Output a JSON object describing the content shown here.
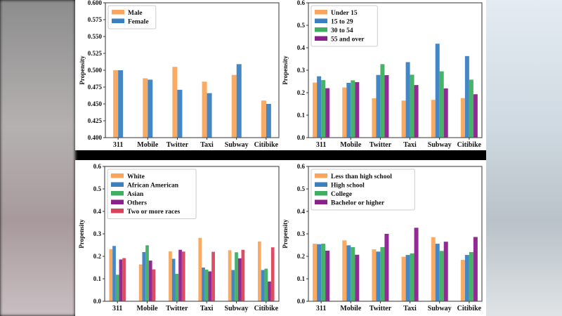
{
  "colors": {
    "orange": "#f9a55b",
    "blue": "#3b7fc1",
    "green": "#3fae62",
    "purple": "#8b1f8c",
    "red": "#d8435b"
  },
  "chart_data": [
    {
      "type": "bar",
      "ylabel": "Propensity",
      "ylim": [
        0.4,
        0.6
      ],
      "yticks": [
        "0.400",
        "0.425",
        "0.450",
        "0.475",
        "0.500",
        "0.525",
        "0.550",
        "0.575",
        "0.600"
      ],
      "categories": [
        "311",
        "Mobile",
        "Twitter",
        "Taxi",
        "Subway",
        "Citibike"
      ],
      "legend": "top-left",
      "series": [
        {
          "name": "Male",
          "color": "#f9a55b",
          "values": [
            0.5,
            0.488,
            0.505,
            0.483,
            0.493,
            0.455
          ]
        },
        {
          "name": "Female",
          "color": "#3b7fc1",
          "values": [
            0.5,
            0.486,
            0.471,
            0.466,
            0.509,
            0.45
          ]
        }
      ]
    },
    {
      "type": "bar",
      "ylabel": "Propensity",
      "ylim": [
        0,
        0.6
      ],
      "yticks": [
        "0.0",
        "0.1",
        "0.2",
        "0.3",
        "0.4",
        "0.5",
        "0.6"
      ],
      "categories": [
        "311",
        "Mobile",
        "Twitter",
        "Taxi",
        "Subway",
        "Citibike"
      ],
      "legend": "top-left",
      "series": [
        {
          "name": "Under 15",
          "color": "#f9a55b",
          "values": [
            0.245,
            0.223,
            0.175,
            0.165,
            0.168,
            0.176
          ]
        },
        {
          "name": "15 to 29",
          "color": "#3b7fc1",
          "values": [
            0.273,
            0.244,
            0.279,
            0.336,
            0.418,
            0.363
          ]
        },
        {
          "name": "30 to 54",
          "color": "#3fae62",
          "values": [
            0.256,
            0.255,
            0.327,
            0.28,
            0.295,
            0.258
          ]
        },
        {
          "name": "55 and over",
          "color": "#8b1f8c",
          "values": [
            0.22,
            0.247,
            0.278,
            0.234,
            0.219,
            0.193
          ]
        }
      ]
    },
    {
      "type": "bar",
      "ylabel": "Propensity",
      "ylim": [
        0,
        0.6
      ],
      "yticks": [
        "0.0",
        "0.1",
        "0.2",
        "0.3",
        "0.4",
        "0.5",
        "0.6"
      ],
      "categories": [
        "311",
        "Mobile",
        "Twitter",
        "Taxi",
        "Subway",
        "Citibike"
      ],
      "legend": "top-left",
      "series": [
        {
          "name": "White",
          "color": "#f9a55b",
          "values": [
            0.232,
            0.164,
            0.222,
            0.282,
            0.227,
            0.266
          ]
        },
        {
          "name": "African American",
          "color": "#3b7fc1",
          "values": [
            0.246,
            0.219,
            0.189,
            0.15,
            0.139,
            0.139
          ]
        },
        {
          "name": "Asian",
          "color": "#3fae62",
          "values": [
            0.118,
            0.249,
            0.122,
            0.141,
            0.218,
            0.145
          ]
        },
        {
          "name": "Others",
          "color": "#8b1f8c",
          "values": [
            0.186,
            0.181,
            0.229,
            0.133,
            0.191,
            0.088
          ]
        },
        {
          "name": "Two or more races",
          "color": "#d8435b",
          "values": [
            0.192,
            0.142,
            0.221,
            0.22,
            0.229,
            0.24
          ]
        }
      ]
    },
    {
      "type": "bar",
      "ylabel": "Propensity",
      "ylim": [
        0,
        0.6
      ],
      "yticks": [
        "0.0",
        "0.1",
        "0.2",
        "0.3",
        "0.4",
        "0.5",
        "0.6"
      ],
      "categories": [
        "311",
        "Mobile",
        "Twitter",
        "Taxi",
        "Subway",
        "Citibike"
      ],
      "legend": "top-left",
      "series": [
        {
          "name": "Less than high school",
          "color": "#f9a55b",
          "values": [
            0.256,
            0.271,
            0.231,
            0.198,
            0.285,
            0.184
          ]
        },
        {
          "name": "High school",
          "color": "#3b7fc1",
          "values": [
            0.254,
            0.249,
            0.221,
            0.206,
            0.256,
            0.206
          ]
        },
        {
          "name": "College",
          "color": "#3fae62",
          "values": [
            0.256,
            0.241,
            0.241,
            0.213,
            0.224,
            0.219
          ]
        },
        {
          "name": "Bachelor or higher",
          "color": "#8b1f8c",
          "values": [
            0.225,
            0.207,
            0.3,
            0.327,
            0.265,
            0.286
          ]
        }
      ]
    }
  ]
}
